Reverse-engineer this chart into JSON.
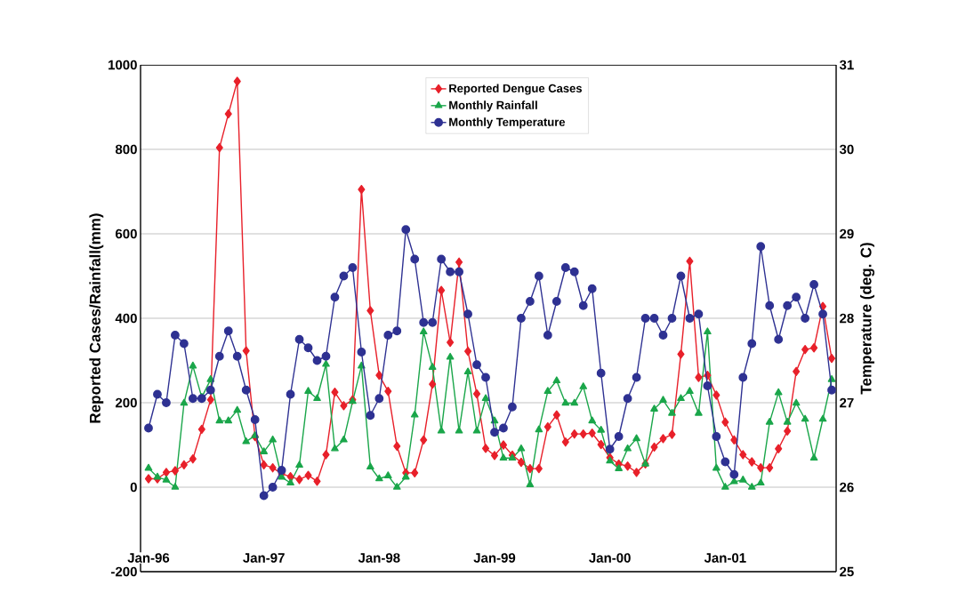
{
  "chart_data": {
    "type": "line",
    "ylabel": "Reported Cases/Rainfall(mm)",
    "y2label": "Temperature (deg. C)",
    "categories": [
      "Jan-96",
      null,
      null,
      null,
      null,
      null,
      null,
      null,
      null,
      null,
      null,
      null,
      null,
      "Jan-97",
      null,
      null,
      null,
      null,
      null,
      null,
      null,
      null,
      null,
      null,
      null,
      null,
      "Jan-98",
      null,
      null,
      null,
      null,
      null,
      null,
      null,
      null,
      null,
      null,
      null,
      null,
      "Jan-99",
      null,
      null,
      null,
      null,
      null,
      null,
      null,
      null,
      null,
      null,
      null,
      null,
      "Jan-00",
      null,
      null,
      null,
      null,
      null,
      null,
      null,
      null,
      null,
      null,
      null,
      null,
      "Jan-01",
      null,
      null,
      null,
      null,
      null,
      null,
      null,
      null,
      null,
      null,
      null,
      null
    ],
    "series": [
      {
        "name": "Reported Dengue Cases",
        "color": "#e8202a",
        "marker": "diamond",
        "values": [
          20,
          20,
          35,
          39,
          53,
          67,
          137,
          207,
          804,
          884,
          961,
          323,
          120,
          53,
          46,
          32,
          25,
          18,
          28,
          14,
          77,
          225,
          193,
          207,
          705,
          418,
          265,
          227,
          97,
          34,
          34,
          112,
          244,
          466,
          343,
          533,
          322,
          221,
          92,
          75,
          100,
          76,
          59,
          44,
          44,
          143,
          171,
          107,
          126,
          126,
          128,
          101,
          70,
          55,
          50,
          35,
          55,
          95,
          115,
          125,
          315,
          535,
          260,
          265,
          218,
          154,
          112,
          77,
          60,
          46,
          46,
          91,
          133,
          274,
          326,
          330,
          428,
          305
        ]
      },
      {
        "name": "Monthly Rainfall",
        "color": "#1aa64a",
        "marker": "triangle",
        "values": [
          45,
          24,
          17,
          0,
          199,
          287,
          213,
          255,
          157,
          157,
          182,
          108,
          122,
          84,
          112,
          24,
          10,
          52,
          227,
          210,
          291,
          91,
          112,
          203,
          287,
          48,
          20,
          27,
          0,
          24,
          171,
          368,
          284,
          133,
          308,
          133,
          273,
          133,
          210,
          157,
          69,
          69,
          91,
          6,
          136,
          227,
          252,
          199,
          199,
          238,
          157,
          135,
          62,
          44,
          91,
          115,
          55,
          185,
          206,
          175,
          210,
          227,
          175,
          368,
          45,
          0,
          13,
          17,
          0,
          10,
          154,
          224,
          154,
          199,
          161,
          69,
          161,
          255
        ]
      },
      {
        "name": "Monthly Temperature",
        "color": "#2e3192",
        "marker": "circle",
        "axis": "y2",
        "values": [
          26.7,
          27.1,
          27.0,
          27.8,
          27.7,
          27.05,
          27.05,
          27.15,
          27.55,
          27.85,
          27.55,
          27.15,
          26.8,
          25.9,
          26.0,
          26.2,
          27.1,
          27.75,
          27.65,
          27.5,
          27.55,
          28.25,
          28.5,
          28.6,
          27.6,
          26.85,
          27.05,
          27.8,
          27.85,
          29.05,
          28.7,
          27.95,
          27.95,
          28.7,
          28.55,
          28.55,
          28.05,
          27.45,
          27.3,
          26.65,
          26.7,
          26.95,
          28.0,
          28.2,
          28.5,
          27.8,
          28.2,
          28.6,
          28.55,
          28.15,
          28.35,
          27.35,
          26.45,
          26.6,
          27.05,
          27.3,
          28.0,
          28.0,
          27.8,
          28.0,
          28.5,
          28.0,
          28.05,
          27.2,
          26.6,
          26.3,
          26.15,
          27.3,
          27.7,
          28.85,
          28.15,
          27.75,
          28.15,
          28.25,
          28.0,
          28.4,
          28.05,
          27.15
        ]
      }
    ],
    "ylim": [
      -200,
      1000
    ],
    "yticks": [
      -200,
      0,
      200,
      400,
      600,
      800,
      1000
    ],
    "y2lim": [
      25,
      31
    ],
    "y2ticks": [
      25,
      26,
      27,
      28,
      29,
      30,
      31
    ],
    "grid": "y",
    "legend": "top",
    "line_style": "solid"
  }
}
